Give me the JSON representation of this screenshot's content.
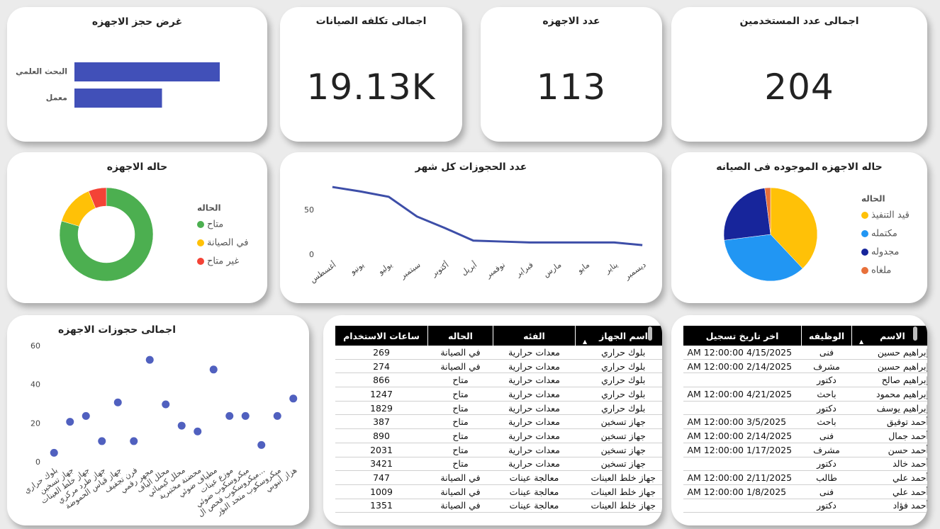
{
  "cards": [
    {
      "title": "اجمالى عدد المستخدمين",
      "value": 204
    },
    {
      "title": "عدد الاجهزه",
      "value": 113
    },
    {
      "title": "اجمالى تكلفه الصيانات",
      "value": "19.13K"
    }
  ],
  "chart_data": [
    {
      "type": "bar",
      "orientation": "horizontal",
      "title": "غرض حجز الاجهزه",
      "categories": [
        "البحث العلمي",
        "معمل"
      ],
      "values": [
        239,
        144
      ],
      "color": "#4150b8"
    },
    {
      "type": "line",
      "title": "عدد الحجوزات كل شهر",
      "categories": [
        "أغسطس",
        "يونيو",
        "يوليو",
        "سبتمبر",
        "أكتوبر",
        "أبريل",
        "نوفمبر",
        "فبراير",
        "مارس",
        "مايو",
        "يناير",
        "ديسمبر"
      ],
      "values": [
        76,
        71,
        65,
        43,
        30,
        16,
        15,
        14,
        14,
        14,
        14,
        11
      ],
      "color": "#3d4ea8",
      "ylim": [
        0,
        80
      ],
      "yticks": [
        0,
        50
      ],
      "grid": false
    },
    {
      "type": "donut",
      "title": "حاله الاجهزه",
      "legend_title": "الحاله",
      "categories": [
        "متاح",
        "في الصيانة",
        "غير متاح"
      ],
      "values": [
        90,
        16,
        7
      ],
      "colors": [
        "#4caf50",
        "#ffc107",
        "#f44336"
      ]
    },
    {
      "type": "pie",
      "title": "حاله الاجهزه الموجوده فى الصيانه",
      "legend_title": "الحاله",
      "categories": [
        "قيد التنفيذ",
        "مكتمله",
        "مجدوله",
        "ملغاه"
      ],
      "values": [
        38,
        35,
        25,
        2
      ],
      "colors": [
        "#ffc107",
        "#2196f3",
        "#17259b",
        "#e8703a"
      ]
    },
    {
      "type": "scatter",
      "title": "اجمالى حجوزات الاجهزه",
      "categories": [
        "بلوك حراري",
        "جهاز تسخين",
        "جهاز خلط العينات",
        "جهاز طرد مركزي",
        "جهاز قياس الحموضة",
        "فرن تجفيف",
        "مجهر رقمي",
        "محلل الياف",
        "محلل كيميائي",
        "محضنة مختبرية",
        "مطياف ضوئي",
        "موزع عينات",
        "ميكروسكوب ضوئي",
        "ميكروسكوب فحص ال...",
        "ميكروسكوب متحد البؤر",
        "هزاز أنبوبي"
      ],
      "values": [
        5,
        21,
        24,
        11,
        31,
        11,
        53,
        30,
        19,
        16,
        48,
        24,
        24,
        9,
        24,
        33
      ],
      "color": "#5060bf",
      "ylim": [
        0,
        60
      ],
      "yticks": [
        0,
        20,
        40,
        60
      ],
      "grid": false
    }
  ],
  "devices_table": {
    "columns": [
      "اسم الجهاز",
      "الفئه",
      "الحاله",
      "ساعات الاستخدام"
    ],
    "rows": [
      [
        "بلوك حراري",
        "معدات حرارية",
        "في الصيانة",
        269
      ],
      [
        "بلوك حراري",
        "معدات حرارية",
        "في الصيانة",
        274
      ],
      [
        "بلوك حراري",
        "معدات حرارية",
        "متاح",
        866
      ],
      [
        "بلوك حراري",
        "معدات حرارية",
        "متاح",
        1247
      ],
      [
        "بلوك حراري",
        "معدات حرارية",
        "متاح",
        1829
      ],
      [
        "جهاز تسخين",
        "معدات حرارية",
        "متاح",
        387
      ],
      [
        "جهاز تسخين",
        "معدات حرارية",
        "متاح",
        890
      ],
      [
        "جهاز تسخين",
        "معدات حرارية",
        "متاح",
        2031
      ],
      [
        "جهاز تسخين",
        "معدات حرارية",
        "متاح",
        3421
      ],
      [
        "جهاز خلط العينات",
        "معالجة عينات",
        "في الصيانة",
        747
      ],
      [
        "جهاز خلط العينات",
        "معالجة عينات",
        "في الصيانة",
        1009
      ],
      [
        "جهاز خلط العينات",
        "معالجة عينات",
        "في الصيانة",
        1351
      ]
    ]
  },
  "users_table": {
    "columns": [
      "الاسم",
      "الوظيفه",
      "اخر تاريخ تسجيل"
    ],
    "rows": [
      [
        "إبراهيم حسين",
        "فنى",
        "4/15/2025 12:00:00 AM"
      ],
      [
        "إبراهيم حسين",
        "مشرف",
        "2/14/2025 12:00:00 AM"
      ],
      [
        "إبراهيم صالح",
        "دكتور",
        null
      ],
      [
        "إبراهيم محمود",
        "باحث",
        "4/21/2025 12:00:00 AM"
      ],
      [
        "إبراهيم يوسف",
        "دكتور",
        null
      ],
      [
        "أحمد توفيق",
        "باحث",
        "3/5/2025 12:00:00 AM"
      ],
      [
        "أحمد جمال",
        "فنى",
        "2/14/2025 12:00:00 AM"
      ],
      [
        "أحمد حسن",
        "مشرف",
        "1/17/2025 12:00:00 AM"
      ],
      [
        "أحمد خالد",
        "دكتور",
        null
      ],
      [
        "أحمد علي",
        "طالب",
        "2/11/2025 12:00:00 AM"
      ],
      [
        "أحمد علي",
        "فنى",
        "1/8/2025 12:00:00 AM"
      ],
      [
        "أحمد فؤاد",
        "دكتور",
        null
      ]
    ]
  }
}
